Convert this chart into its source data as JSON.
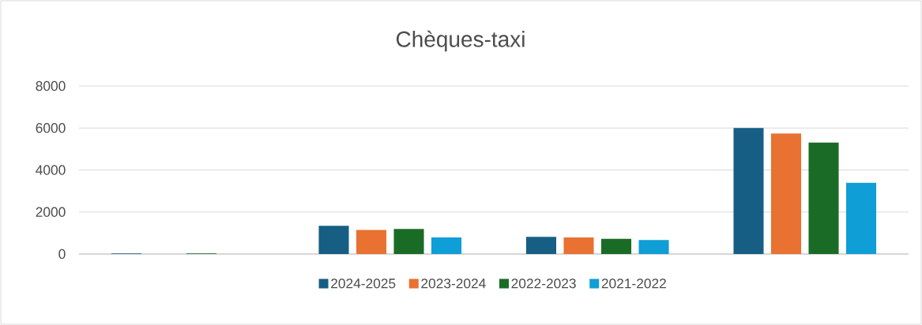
{
  "chart_data": {
    "type": "bar",
    "title": "Chèques-taxi",
    "categories": [
      null,
      null,
      null,
      null
    ],
    "series": [
      {
        "name": "2024-2025",
        "color": "#175e84",
        "values": [
          30,
          1340,
          820,
          6000
        ]
      },
      {
        "name": "2023-2024",
        "color": "#e97132",
        "values": [
          0,
          1150,
          790,
          5740
        ]
      },
      {
        "name": "2022-2023",
        "color": "#1a6b26",
        "values": [
          30,
          1190,
          725,
          5310
        ]
      },
      {
        "name": "2021-2022",
        "color": "#0f9ed5",
        "values": [
          0,
          790,
          665,
          3390
        ]
      }
    ],
    "ylim": [
      0,
      8000
    ],
    "yticks": [
      0,
      2000,
      4000,
      6000,
      8000
    ],
    "grid": "y",
    "legend": "bottom"
  }
}
